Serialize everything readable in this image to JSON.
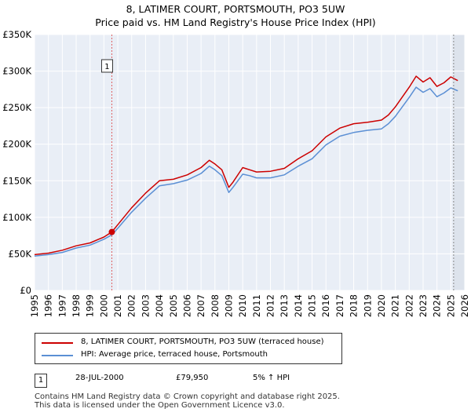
{
  "title_line1": "8, LATIMER COURT, PORTSMOUTH, PO3 5UW",
  "title_line2": "Price paid vs. HM Land Registry's House Price Index (HPI)",
  "chart_data": {
    "type": "line",
    "title": "8, LATIMER COURT, PORTSMOUTH, PO3 5UW — Price paid vs. HM Land Registry's House Price Index (HPI)",
    "xlabel": "",
    "ylabel": "",
    "xlim": [
      1995,
      2026
    ],
    "ylim": [
      0,
      350000
    ],
    "y_ticks": [
      0,
      50000,
      100000,
      150000,
      200000,
      250000,
      300000,
      350000
    ],
    "y_tick_labels": [
      "£0",
      "£50K",
      "£100K",
      "£150K",
      "£200K",
      "£250K",
      "£300K",
      "£350K"
    ],
    "x_ticks": [
      1995,
      1996,
      1997,
      1998,
      1999,
      2000,
      2001,
      2002,
      2003,
      2004,
      2005,
      2006,
      2007,
      2008,
      2009,
      2010,
      2011,
      2012,
      2013,
      2014,
      2015,
      2016,
      2017,
      2018,
      2019,
      2020,
      2021,
      2022,
      2023,
      2024,
      2025,
      2026
    ],
    "grid": true,
    "series": [
      {
        "name": "8, LATIMER COURT, PORTSMOUTH, PO3 5UW (terraced house)",
        "color": "#cc0000",
        "x": [
          1995,
          1996,
          1997,
          1998,
          1999,
          2000,
          2000.57,
          2001,
          2002,
          2003,
          2004,
          2005,
          2006,
          2007,
          2007.6,
          2008,
          2008.5,
          2009,
          2009.3,
          2010,
          2010.5,
          2011,
          2012,
          2013,
          2014,
          2015,
          2016,
          2017,
          2018,
          2019,
          2020,
          2020.5,
          2021,
          2022,
          2022.5,
          2023,
          2023.5,
          2024,
          2024.5,
          2025,
          2025.5
        ],
        "y": [
          49000,
          51000,
          55000,
          61000,
          65000,
          73000,
          79950,
          90000,
          113000,
          133000,
          150000,
          152000,
          158000,
          168000,
          178000,
          173000,
          165000,
          141000,
          148000,
          168000,
          165000,
          162000,
          163000,
          167000,
          180000,
          191000,
          210000,
          222000,
          228000,
          230000,
          233000,
          240000,
          251000,
          278000,
          293000,
          285000,
          291000,
          279000,
          284000,
          292000,
          287000
        ]
      },
      {
        "name": "HPI: Average price, terraced house, Portsmouth",
        "color": "#5b8fd4",
        "x": [
          1995,
          1996,
          1997,
          1998,
          1999,
          2000,
          2000.57,
          2001,
          2002,
          2003,
          2004,
          2005,
          2006,
          2007,
          2007.6,
          2008,
          2008.5,
          2009,
          2009.3,
          2010,
          2010.5,
          2011,
          2012,
          2013,
          2014,
          2015,
          2016,
          2017,
          2018,
          2019,
          2020,
          2020.5,
          2021,
          2022,
          2022.5,
          2023,
          2023.5,
          2024,
          2024.5,
          2025,
          2025.5
        ],
        "y": [
          47000,
          49000,
          52000,
          58000,
          62000,
          70000,
          76000,
          85000,
          107000,
          126000,
          143000,
          146000,
          151000,
          160000,
          170000,
          165000,
          157000,
          134000,
          141000,
          159000,
          157000,
          154000,
          154000,
          158000,
          170000,
          180000,
          199000,
          211000,
          216000,
          219000,
          221000,
          228000,
          238000,
          264000,
          278000,
          271000,
          276000,
          265000,
          270000,
          277000,
          273000
        ]
      }
    ],
    "annotations": [
      {
        "label": "1",
        "x": 2000.57,
        "y": 79950
      }
    ],
    "forecast_shade_from": 2025.2
  },
  "legend": {
    "items": [
      {
        "label": "8, LATIMER COURT, PORTSMOUTH, PO3 5UW (terraced house)",
        "color": "#cc0000"
      },
      {
        "label": "HPI: Average price, terraced house, Portsmouth",
        "color": "#5b8fd4"
      }
    ]
  },
  "transaction": {
    "marker": "1",
    "date": "28-JUL-2000",
    "price": "£79,950",
    "hpi_diff": "5% ↑ HPI"
  },
  "footer": {
    "line1": "Contains HM Land Registry data © Crown copyright and database right 2025.",
    "line2": "This data is licensed under the Open Government Licence v3.0."
  }
}
